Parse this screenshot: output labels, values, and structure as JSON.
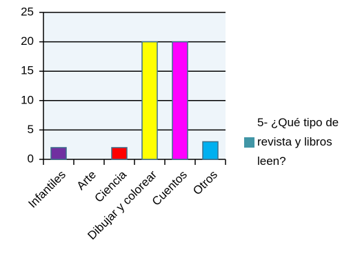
{
  "chart_data": {
    "type": "bar",
    "categories": [
      "Infantiles",
      "Arte",
      "Ciencia",
      "Dibujar y colorear",
      "Cuentos",
      "Otros"
    ],
    "series": [
      {
        "name": "5- ¿Qué tipo de revista y libros leen?",
        "color": "#4196a6",
        "values": [
          2,
          0,
          2,
          20,
          20,
          3
        ],
        "colors": [
          "#7030a0",
          "#4196a6",
          "#ff0000",
          "#ffff00",
          "#ff00ff",
          "#00b0f0"
        ]
      }
    ],
    "ylim": [
      0,
      25
    ],
    "yticks": [
      0,
      5,
      10,
      15,
      20,
      25
    ],
    "grid": true,
    "legend": "right"
  }
}
